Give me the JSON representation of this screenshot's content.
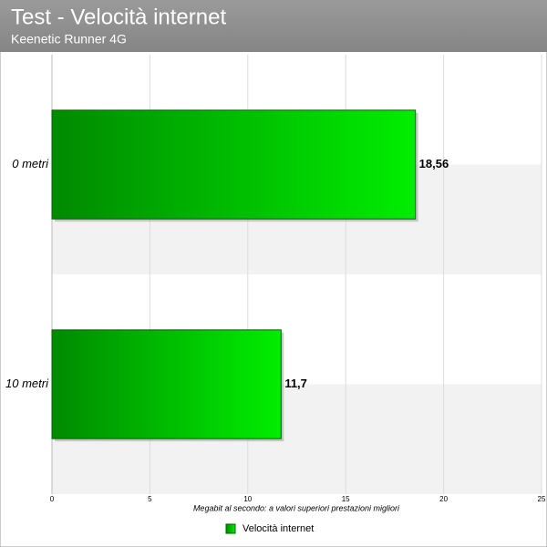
{
  "chart_data": {
    "type": "bar",
    "orientation": "horizontal",
    "title": "Test - Velocità internet",
    "subtitle": "Keenetic Runner 4G",
    "x_label": "Megabit al secondo: a valori superiori prestazioni migliori",
    "categories": [
      "0 metri",
      "10 metri"
    ],
    "series": [
      {
        "name": "Velocità internet",
        "color": "#00d800",
        "values": [
          18.56,
          11.7
        ],
        "value_labels": [
          "18,56",
          "11,7"
        ]
      }
    ],
    "xlim": [
      0,
      25
    ],
    "xticks": [
      0,
      5,
      10,
      15,
      20,
      25
    ],
    "grid": true,
    "legend": "bottom"
  }
}
